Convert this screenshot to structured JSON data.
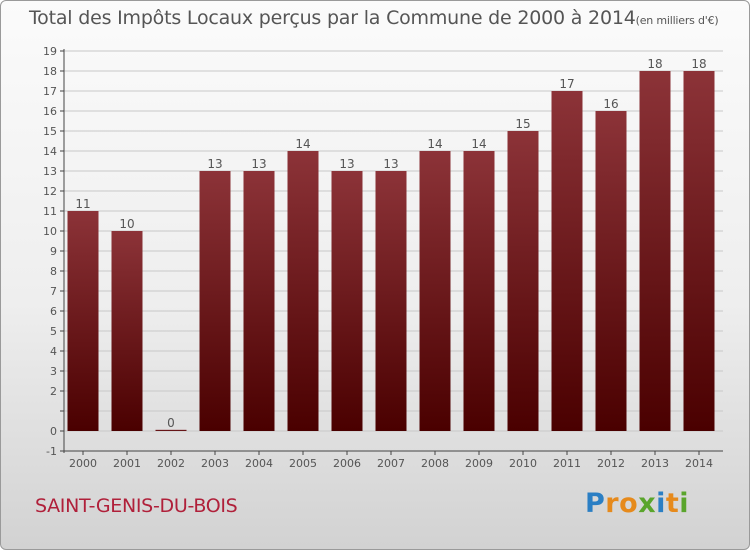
{
  "title": {
    "main": "Total des Impôts Locaux perçus par la Commune de 2000 à 2014",
    "unit": "(en milliers d'€)"
  },
  "commune": "SAINT-GENIS-DU-BOIS",
  "brand": {
    "text": "Proxiti",
    "letters": [
      "P",
      "r",
      "o",
      "x",
      "i",
      "t",
      "i"
    ],
    "colors": [
      "#2b7fc4",
      "#e68a1c",
      "#e68a1c",
      "#5aa52c",
      "#2b7fc4",
      "#e68a1c",
      "#5aa52c"
    ]
  },
  "colors": {
    "bar_top": "#8c3338",
    "bar_bottom": "#4a0000",
    "axis": "#444444",
    "grid": "#c8c8c8"
  },
  "chart_data": {
    "type": "bar",
    "title": "Total des Impôts Locaux perçus par la Commune de 2000 à 2014",
    "xlabel": "",
    "ylabel": "",
    "ylim": [
      -1,
      19
    ],
    "yticks": [
      -1,
      0,
      1,
      2,
      3,
      4,
      5,
      6,
      7,
      8,
      9,
      10,
      11,
      12,
      13,
      14,
      15,
      16,
      17,
      18,
      19
    ],
    "ytick_labels": [
      "-1",
      "0",
      "",
      "2",
      "3",
      "4",
      "5",
      "6",
      "7",
      "8",
      "9",
      "10",
      "11",
      "12",
      "13",
      "14",
      "15",
      "16",
      "17",
      "18",
      "19"
    ],
    "categories": [
      "2000",
      "2001",
      "2002",
      "2003",
      "2004",
      "2005",
      "2006",
      "2007",
      "2008",
      "2009",
      "2010",
      "2011",
      "2012",
      "2013",
      "2014"
    ],
    "values": [
      11,
      10,
      0,
      13,
      13,
      14,
      13,
      13,
      14,
      14,
      15,
      17,
      16,
      18,
      18
    ],
    "grid": true
  }
}
